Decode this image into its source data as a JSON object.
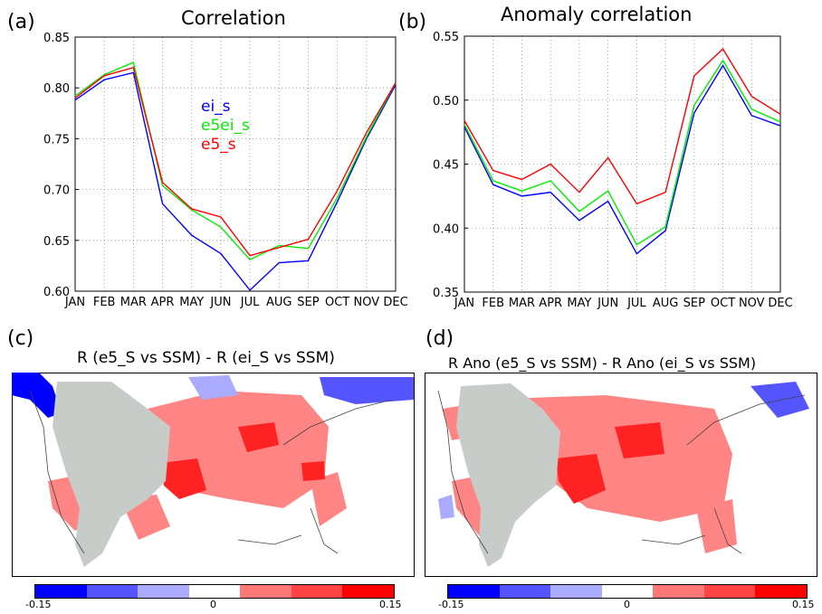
{
  "panels": {
    "a": {
      "label": "(a)",
      "title": "Correlation"
    },
    "b": {
      "label": "(b)",
      "title": "Anomaly correlation"
    },
    "c": {
      "label": "(c)",
      "title": "R (e5_S vs SSM) - R (ei_S vs SSM)",
      "colorbar": {
        "min_label": "-0.15",
        "mid_label": "0",
        "max_label": "0.15",
        "colors": [
          "#0000ff",
          "#5555ff",
          "#aaaaff",
          "#ffffff",
          "#ff7777",
          "#ff4444",
          "#ff0000"
        ]
      }
    },
    "d": {
      "label": "(d)",
      "title": "R Ano (e5_S vs SSM) - R Ano (ei_S vs SSM)",
      "colorbar": {
        "min_label": "-0.15",
        "mid_label": "0",
        "max_label": "0.15",
        "colors": [
          "#0000ff",
          "#5555ff",
          "#aaaaff",
          "#ffffff",
          "#ff7777",
          "#ff4444",
          "#ff0000"
        ]
      }
    }
  },
  "chart_data": [
    {
      "id": "a",
      "type": "line",
      "title": "Correlation",
      "categories": [
        "JAN",
        "FEB",
        "MAR",
        "APR",
        "MAY",
        "JUN",
        "JUL",
        "AUG",
        "SEP",
        "OCT",
        "NOV",
        "DEC"
      ],
      "ylim": [
        0.6,
        0.85
      ],
      "yticks": [
        "0.60",
        "0.65",
        "0.70",
        "0.75",
        "0.80",
        "0.85"
      ],
      "grid": true,
      "legend_position": "center",
      "series": [
        {
          "name": "ei_s",
          "color": "#0000ff",
          "values": [
            0.788,
            0.808,
            0.815,
            0.686,
            0.655,
            0.637,
            0.601,
            0.628,
            0.63,
            0.688,
            0.75,
            0.803
          ]
        },
        {
          "name": "e5ei_s",
          "color": "#00ee00",
          "values": [
            0.792,
            0.813,
            0.825,
            0.704,
            0.68,
            0.663,
            0.631,
            0.645,
            0.642,
            0.692,
            0.752,
            0.805
          ]
        },
        {
          "name": "e5_s",
          "color": "#ff0000",
          "values": [
            0.79,
            0.812,
            0.82,
            0.707,
            0.681,
            0.673,
            0.635,
            0.643,
            0.651,
            0.699,
            0.756,
            0.805
          ]
        }
      ]
    },
    {
      "id": "b",
      "type": "line",
      "title": "Anomaly correlation",
      "categories": [
        "JAN",
        "FEB",
        "MAR",
        "APR",
        "MAY",
        "JUN",
        "JUL",
        "AUG",
        "SEP",
        "OCT",
        "NOV",
        "DEC"
      ],
      "ylim": [
        0.35,
        0.55
      ],
      "yticks": [
        "0.35",
        "0.40",
        "0.45",
        "0.50",
        "0.55"
      ],
      "grid": true,
      "series": [
        {
          "color": "#0000ff",
          "values": [
            0.479,
            0.434,
            0.425,
            0.428,
            0.406,
            0.421,
            0.38,
            0.398,
            0.49,
            0.527,
            0.488,
            0.48
          ]
        },
        {
          "color": "#00ee00",
          "values": [
            0.481,
            0.437,
            0.429,
            0.437,
            0.413,
            0.429,
            0.387,
            0.401,
            0.496,
            0.531,
            0.493,
            0.483
          ]
        },
        {
          "color": "#ff0000",
          "values": [
            0.484,
            0.445,
            0.438,
            0.45,
            0.428,
            0.455,
            0.419,
            0.428,
            0.519,
            0.54,
            0.503,
            0.489
          ]
        }
      ]
    }
  ]
}
